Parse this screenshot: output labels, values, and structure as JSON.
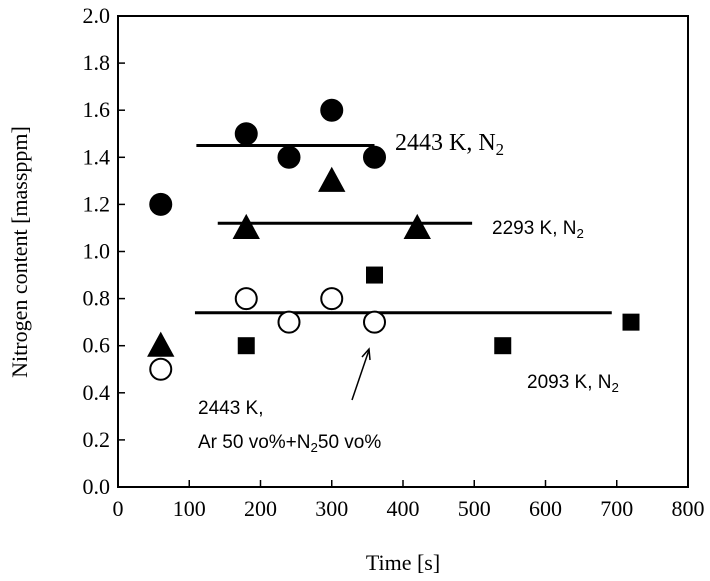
{
  "chart_data": {
    "type": "scatter",
    "x_label": "Time [s]",
    "y_label": "Nitrogen content [massppm]",
    "xlim": [
      0,
      800
    ],
    "xticks": [
      0,
      100,
      200,
      300,
      400,
      500,
      600,
      700,
      800
    ],
    "ylim": [
      0,
      2
    ],
    "yticks": [
      {
        "value": 0,
        "label": "0.0"
      },
      {
        "value": 0.2,
        "label": "0.2"
      },
      {
        "value": 0.4,
        "label": "0.4"
      },
      {
        "value": 0.6,
        "label": "0.6"
      },
      {
        "value": 0.8,
        "label": "0.8"
      },
      {
        "value": 1,
        "label": "1.0"
      },
      {
        "value": 1.2,
        "label": "1.2"
      },
      {
        "value": 1.4,
        "label": "1.4"
      },
      {
        "value": 1.6,
        "label": "1.6"
      },
      {
        "value": 1.8,
        "label": "1.8"
      },
      {
        "value": 2,
        "label": "2.0"
      }
    ],
    "series": [
      {
        "marker": "circle",
        "filled": true,
        "color": "#000000",
        "x": [
          60,
          180,
          240,
          300,
          360
        ],
        "values": [
          1.2,
          1.5,
          1.4,
          1.6,
          1.4
        ]
      },
      {
        "marker": "triangle",
        "filled": true,
        "color": "#000000",
        "x": [
          60,
          180,
          300,
          420
        ],
        "values": [
          0.6,
          1.1,
          1.3,
          1.1
        ]
      },
      {
        "marker": "circle",
        "filled": false,
        "color": "#000000",
        "x": [
          60,
          180,
          240,
          300,
          360
        ],
        "values": [
          0.5,
          0.8,
          0.7,
          0.8,
          0.7
        ]
      },
      {
        "marker": "square",
        "filled": true,
        "color": "#000000",
        "x": [
          180,
          360,
          540,
          720
        ],
        "values": [
          0.6,
          0.9,
          0.6,
          0.7
        ]
      }
    ],
    "average_lines": [
      {
        "x": [
          110,
          360
        ],
        "value": 1.45
      },
      {
        "x": [
          140,
          497
        ],
        "value": 1.12
      },
      {
        "x": [
          108,
          693
        ],
        "value": 0.74
      }
    ],
    "annotations": [
      {
        "lines": [
          [
            "2443 K, N",
            "2"
          ]
        ]
      },
      {
        "lines": [
          [
            "2293 K, N",
            "2"
          ]
        ]
      },
      {
        "lines": [
          [
            "2093 K, N",
            "2"
          ]
        ]
      },
      {
        "lines": [
          [
            "2443 K,"
          ],
          [
            "Ar 50 vo%+N",
            "2",
            "50 vo%"
          ]
        ]
      }
    ]
  }
}
